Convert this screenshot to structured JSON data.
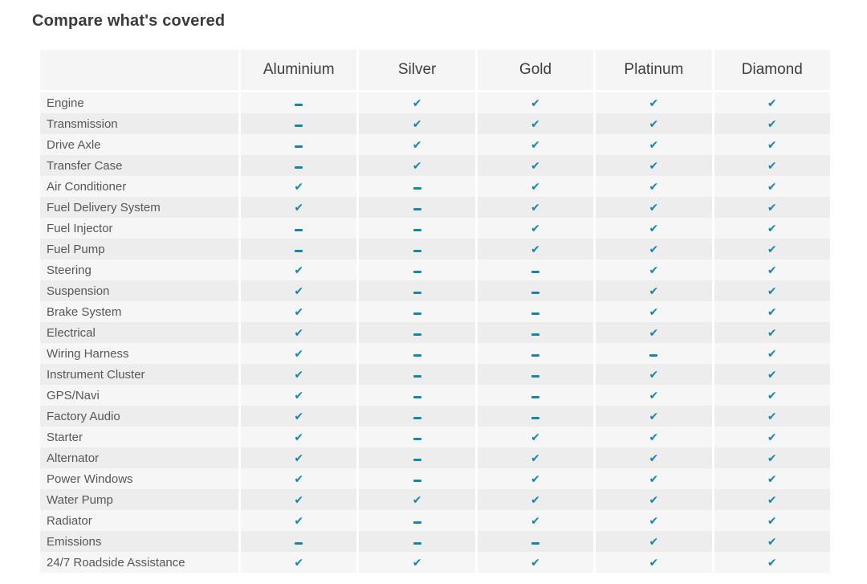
{
  "page": {
    "title": "Compare what's covered"
  },
  "colors": {
    "accent": "#1585a8",
    "row_light": "#f6f6f6",
    "row_dark": "#ededed",
    "header_bg": "#f5f5f5",
    "title_color": "#3a3a3a",
    "label_color": "#575757",
    "header_text": "#3d3d3d"
  },
  "icons": {
    "check": "✔",
    "dash": "–"
  },
  "table": {
    "columns": [
      "Aluminium",
      "Silver",
      "Gold",
      "Platinum",
      "Diamond"
    ],
    "rows": [
      {
        "label": "Engine",
        "values": [
          "dash",
          "check",
          "check",
          "check",
          "check"
        ]
      },
      {
        "label": "Transmission",
        "values": [
          "dash",
          "check",
          "check",
          "check",
          "check"
        ]
      },
      {
        "label": "Drive Axle",
        "values": [
          "dash",
          "check",
          "check",
          "check",
          "check"
        ]
      },
      {
        "label": "Transfer Case",
        "values": [
          "dash",
          "check",
          "check",
          "check",
          "check"
        ]
      },
      {
        "label": "Air Conditioner",
        "values": [
          "check",
          "dash",
          "check",
          "check",
          "check"
        ]
      },
      {
        "label": "Fuel Delivery System",
        "values": [
          "check",
          "dash",
          "check",
          "check",
          "check"
        ]
      },
      {
        "label": "Fuel Injector",
        "values": [
          "dash",
          "dash",
          "check",
          "check",
          "check"
        ]
      },
      {
        "label": "Fuel Pump",
        "values": [
          "dash",
          "dash",
          "check",
          "check",
          "check"
        ]
      },
      {
        "label": "Steering",
        "values": [
          "check",
          "dash",
          "dash",
          "check",
          "check"
        ]
      },
      {
        "label": "Suspension",
        "values": [
          "check",
          "dash",
          "dash",
          "check",
          "check"
        ]
      },
      {
        "label": "Brake System",
        "values": [
          "check",
          "dash",
          "dash",
          "check",
          "check"
        ]
      },
      {
        "label": "Electrical",
        "values": [
          "check",
          "dash",
          "dash",
          "check",
          "check"
        ]
      },
      {
        "label": "Wiring Harness",
        "values": [
          "check",
          "dash",
          "dash",
          "dash",
          "check"
        ]
      },
      {
        "label": "Instrument Cluster",
        "values": [
          "check",
          "dash",
          "dash",
          "check",
          "check"
        ]
      },
      {
        "label": "GPS/Navi",
        "values": [
          "check",
          "dash",
          "dash",
          "check",
          "check"
        ]
      },
      {
        "label": "Factory Audio",
        "values": [
          "check",
          "dash",
          "dash",
          "check",
          "check"
        ]
      },
      {
        "label": "Starter",
        "values": [
          "check",
          "dash",
          "check",
          "check",
          "check"
        ]
      },
      {
        "label": "Alternator",
        "values": [
          "check",
          "dash",
          "check",
          "check",
          "check"
        ]
      },
      {
        "label": "Power Windows",
        "values": [
          "check",
          "dash",
          "check",
          "check",
          "check"
        ]
      },
      {
        "label": "Water Pump",
        "values": [
          "check",
          "check",
          "check",
          "check",
          "check"
        ]
      },
      {
        "label": "Radiator",
        "values": [
          "check",
          "dash",
          "check",
          "check",
          "check"
        ]
      },
      {
        "label": "Emissions",
        "values": [
          "dash",
          "dash",
          "dash",
          "check",
          "check"
        ]
      },
      {
        "label": "24/7 Roadside Assistance",
        "values": [
          "check",
          "check",
          "check",
          "check",
          "check"
        ]
      }
    ]
  }
}
